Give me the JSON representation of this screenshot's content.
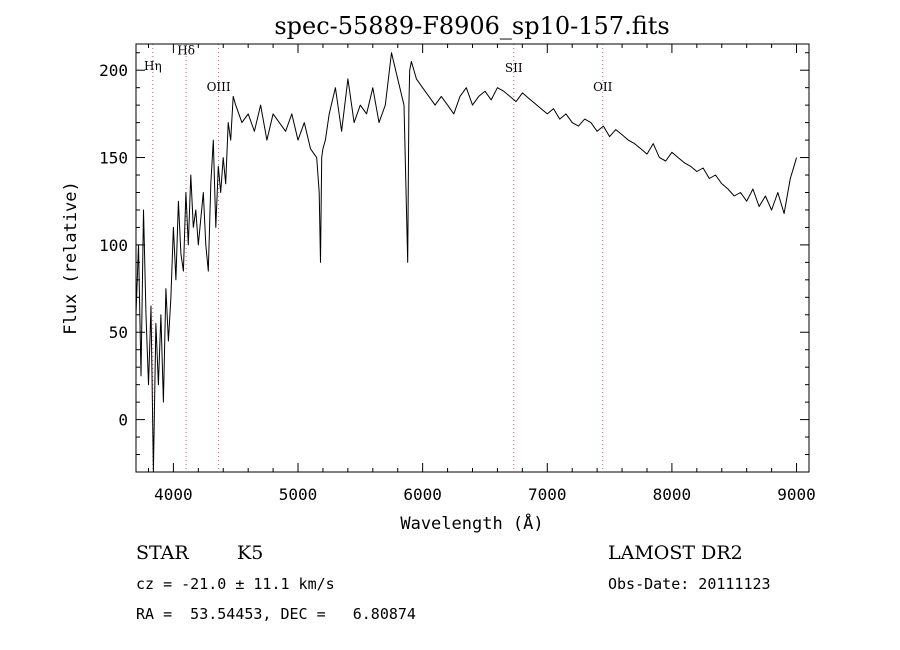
{
  "chart_data": {
    "type": "line",
    "title": "spec-55889-F8906_sp10-157.fits",
    "xlabel": "Wavelength (Å)",
    "ylabel": "Flux (relative)",
    "xlim": [
      3700,
      9100
    ],
    "ylim": [
      -30,
      215
    ],
    "xticks": [
      4000,
      5000,
      6000,
      7000,
      8000,
      9000
    ],
    "yticks": [
      0,
      50,
      100,
      150,
      200
    ],
    "grid": false,
    "legend": "none",
    "line_color": "#000000",
    "marker_color": "#d4606e",
    "spectral_lines": [
      {
        "label": "Hη",
        "wavelength": 3835,
        "label_y": 200
      },
      {
        "label": "Hδ",
        "wavelength": 4102,
        "label_y": 209
      },
      {
        "label": "OIII",
        "wavelength": 4363,
        "label_y": 188
      },
      {
        "label": "SII",
        "wavelength": 6731,
        "label_y": 199
      },
      {
        "label": "OII",
        "wavelength": 7445,
        "label_y": 188
      }
    ],
    "series": [
      {
        "x": [
          3700,
          3720,
          3740,
          3760,
          3780,
          3800,
          3820,
          3840,
          3860,
          3880,
          3900,
          3920,
          3940,
          3960,
          3980,
          4000,
          4020,
          4040,
          4060,
          4080,
          4100,
          4120,
          4140,
          4160,
          4180,
          4200,
          4220,
          4240,
          4260,
          4280,
          4300,
          4320,
          4340,
          4360,
          4380,
          4400,
          4420,
          4440,
          4460,
          4480,
          4500,
          4550,
          4600,
          4650,
          4700,
          4750,
          4800,
          4850,
          4900,
          4950,
          5000,
          5050,
          5100,
          5150,
          5170,
          5180,
          5190,
          5200,
          5220,
          5250,
          5300,
          5350,
          5400,
          5450,
          5500,
          5550,
          5600,
          5650,
          5700,
          5750,
          5800,
          5850,
          5880,
          5890,
          5896,
          5910,
          5950,
          6000,
          6050,
          6100,
          6150,
          6200,
          6250,
          6300,
          6350,
          6400,
          6450,
          6500,
          6550,
          6600,
          6650,
          6700,
          6750,
          6800,
          6850,
          6900,
          6950,
          7000,
          7050,
          7100,
          7150,
          7200,
          7250,
          7300,
          7350,
          7400,
          7450,
          7500,
          7550,
          7600,
          7650,
          7700,
          7750,
          7800,
          7850,
          7900,
          7950,
          8000,
          8050,
          8100,
          8150,
          8200,
          8250,
          8300,
          8350,
          8400,
          8450,
          8500,
          8550,
          8600,
          8650,
          8700,
          8750,
          8800,
          8850,
          8900,
          8950,
          8980,
          9000
        ],
        "y": [
          60,
          100,
          25,
          120,
          60,
          20,
          65,
          -30,
          55,
          20,
          60,
          10,
          75,
          45,
          70,
          110,
          80,
          125,
          95,
          85,
          130,
          100,
          140,
          110,
          120,
          100,
          115,
          130,
          100,
          85,
          135,
          160,
          110,
          145,
          130,
          150,
          135,
          170,
          160,
          185,
          180,
          170,
          175,
          165,
          180,
          160,
          175,
          170,
          165,
          175,
          160,
          170,
          155,
          150,
          130,
          90,
          150,
          155,
          160,
          175,
          190,
          165,
          195,
          170,
          180,
          175,
          190,
          170,
          180,
          210,
          195,
          180,
          90,
          180,
          200,
          205,
          195,
          190,
          185,
          180,
          185,
          180,
          175,
          185,
          190,
          180,
          185,
          188,
          183,
          190,
          188,
          185,
          182,
          187,
          184,
          181,
          178,
          175,
          178,
          172,
          175,
          170,
          168,
          172,
          170,
          165,
          168,
          162,
          166,
          163,
          160,
          158,
          155,
          152,
          158,
          150,
          148,
          153,
          150,
          147,
          145,
          142,
          144,
          138,
          140,
          135,
          132,
          128,
          130,
          125,
          132,
          122,
          128,
          120,
          130,
          118,
          138,
          145,
          150
        ],
        "line_color": "#000000"
      }
    ],
    "annotations": {
      "object_class": "STAR",
      "subclass": "K5",
      "survey": "LAMOST DR2",
      "cz": "cz = -21.0 ± 11.1 km/s",
      "obs_date": "Obs-Date: 20111123",
      "coords": "RA =  53.54453, DEC =   6.80874"
    }
  }
}
